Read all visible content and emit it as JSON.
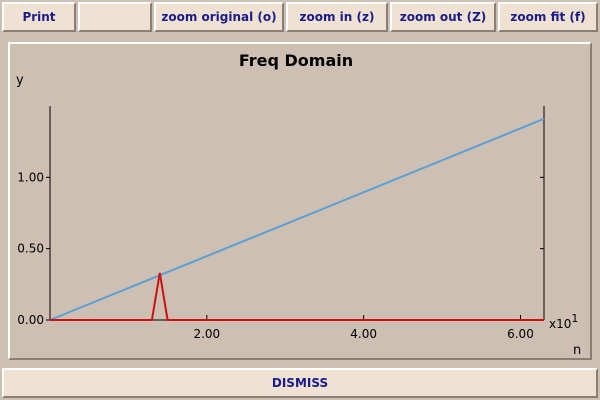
{
  "toolbar": {
    "print_label": "Print",
    "zoom_original_label": "zoom original (o)",
    "zoom_in_label": "zoom in (z)",
    "zoom_out_label": "zoom out (Z)",
    "zoom_fit_label": "zoom fit (f)"
  },
  "footer": {
    "dismiss_label": "DISMISS"
  },
  "colors": {
    "background": "#cdbfb1",
    "button": "#efe2d3",
    "button_text": "#1b1b8a",
    "series_line": "#5aa0d8",
    "series_impulse": "#d01010"
  },
  "chart_data": {
    "type": "line",
    "title": "Freq Domain",
    "xlabel": "n",
    "ylabel": "y",
    "x_multiplier_label": "x10",
    "x_multiplier_exp": "1",
    "xlim": [
      0,
      6.3
    ],
    "ylim": [
      0,
      1.5
    ],
    "x_ticks": [
      {
        "value": 2.0,
        "label": "2.00"
      },
      {
        "value": 4.0,
        "label": "4.00"
      },
      {
        "value": 6.0,
        "label": "6.00"
      }
    ],
    "y_ticks": [
      {
        "value": 0.0,
        "label": "0.00"
      },
      {
        "value": 0.5,
        "label": "0.50"
      },
      {
        "value": 1.0,
        "label": "1.00"
      }
    ],
    "grid": false,
    "series": [
      {
        "color": "#5aa0d8",
        "x": [
          0,
          6.3
        ],
        "y": [
          0,
          1.41
        ]
      },
      {
        "color": "#d01010",
        "x": [
          0,
          1.3,
          1.4,
          1.5,
          6.3
        ],
        "y": [
          0,
          0,
          0.33,
          0,
          0
        ]
      }
    ]
  }
}
